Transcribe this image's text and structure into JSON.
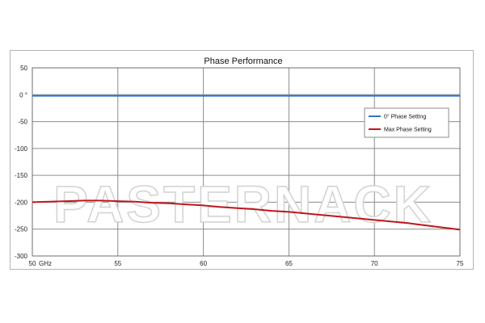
{
  "chart_data": {
    "type": "line",
    "title": "Phase Performance",
    "xlabel": "",
    "ylabel": "",
    "x_tick_labels": [
      "50",
      "55",
      "60",
      "65",
      "70",
      "75"
    ],
    "x_unit_label": "GHz",
    "y_tick_labels": [
      "50",
      "0 °",
      "-50",
      "-100",
      "-150",
      "-200",
      "-250",
      "-300"
    ],
    "xlim": [
      50,
      75
    ],
    "ylim": [
      -300,
      50
    ],
    "grid": true,
    "legend_position": "right",
    "series": [
      {
        "name": "0° Phase Setting",
        "color": "#2e75c8",
        "x": [
          50,
          55,
          60,
          65,
          70,
          75
        ],
        "y": [
          -2,
          -2,
          -2,
          -2,
          -2,
          -2
        ]
      },
      {
        "name": "Max Phase Setting",
        "color": "#c0161c",
        "x": [
          50,
          51,
          52,
          53,
          54,
          55,
          56,
          57,
          58,
          59,
          60,
          61,
          62,
          63,
          64,
          65,
          66,
          67,
          68,
          69,
          70,
          71,
          72,
          73,
          74,
          75
        ],
        "y": [
          -200,
          -199,
          -198,
          -197,
          -197,
          -198,
          -199,
          -201,
          -202,
          -204,
          -206,
          -209,
          -211,
          -213,
          -216,
          -218,
          -221,
          -224,
          -227,
          -230,
          -233,
          -236,
          -239,
          -243,
          -247,
          -251
        ]
      }
    ]
  },
  "watermark": "PASTERNACK"
}
